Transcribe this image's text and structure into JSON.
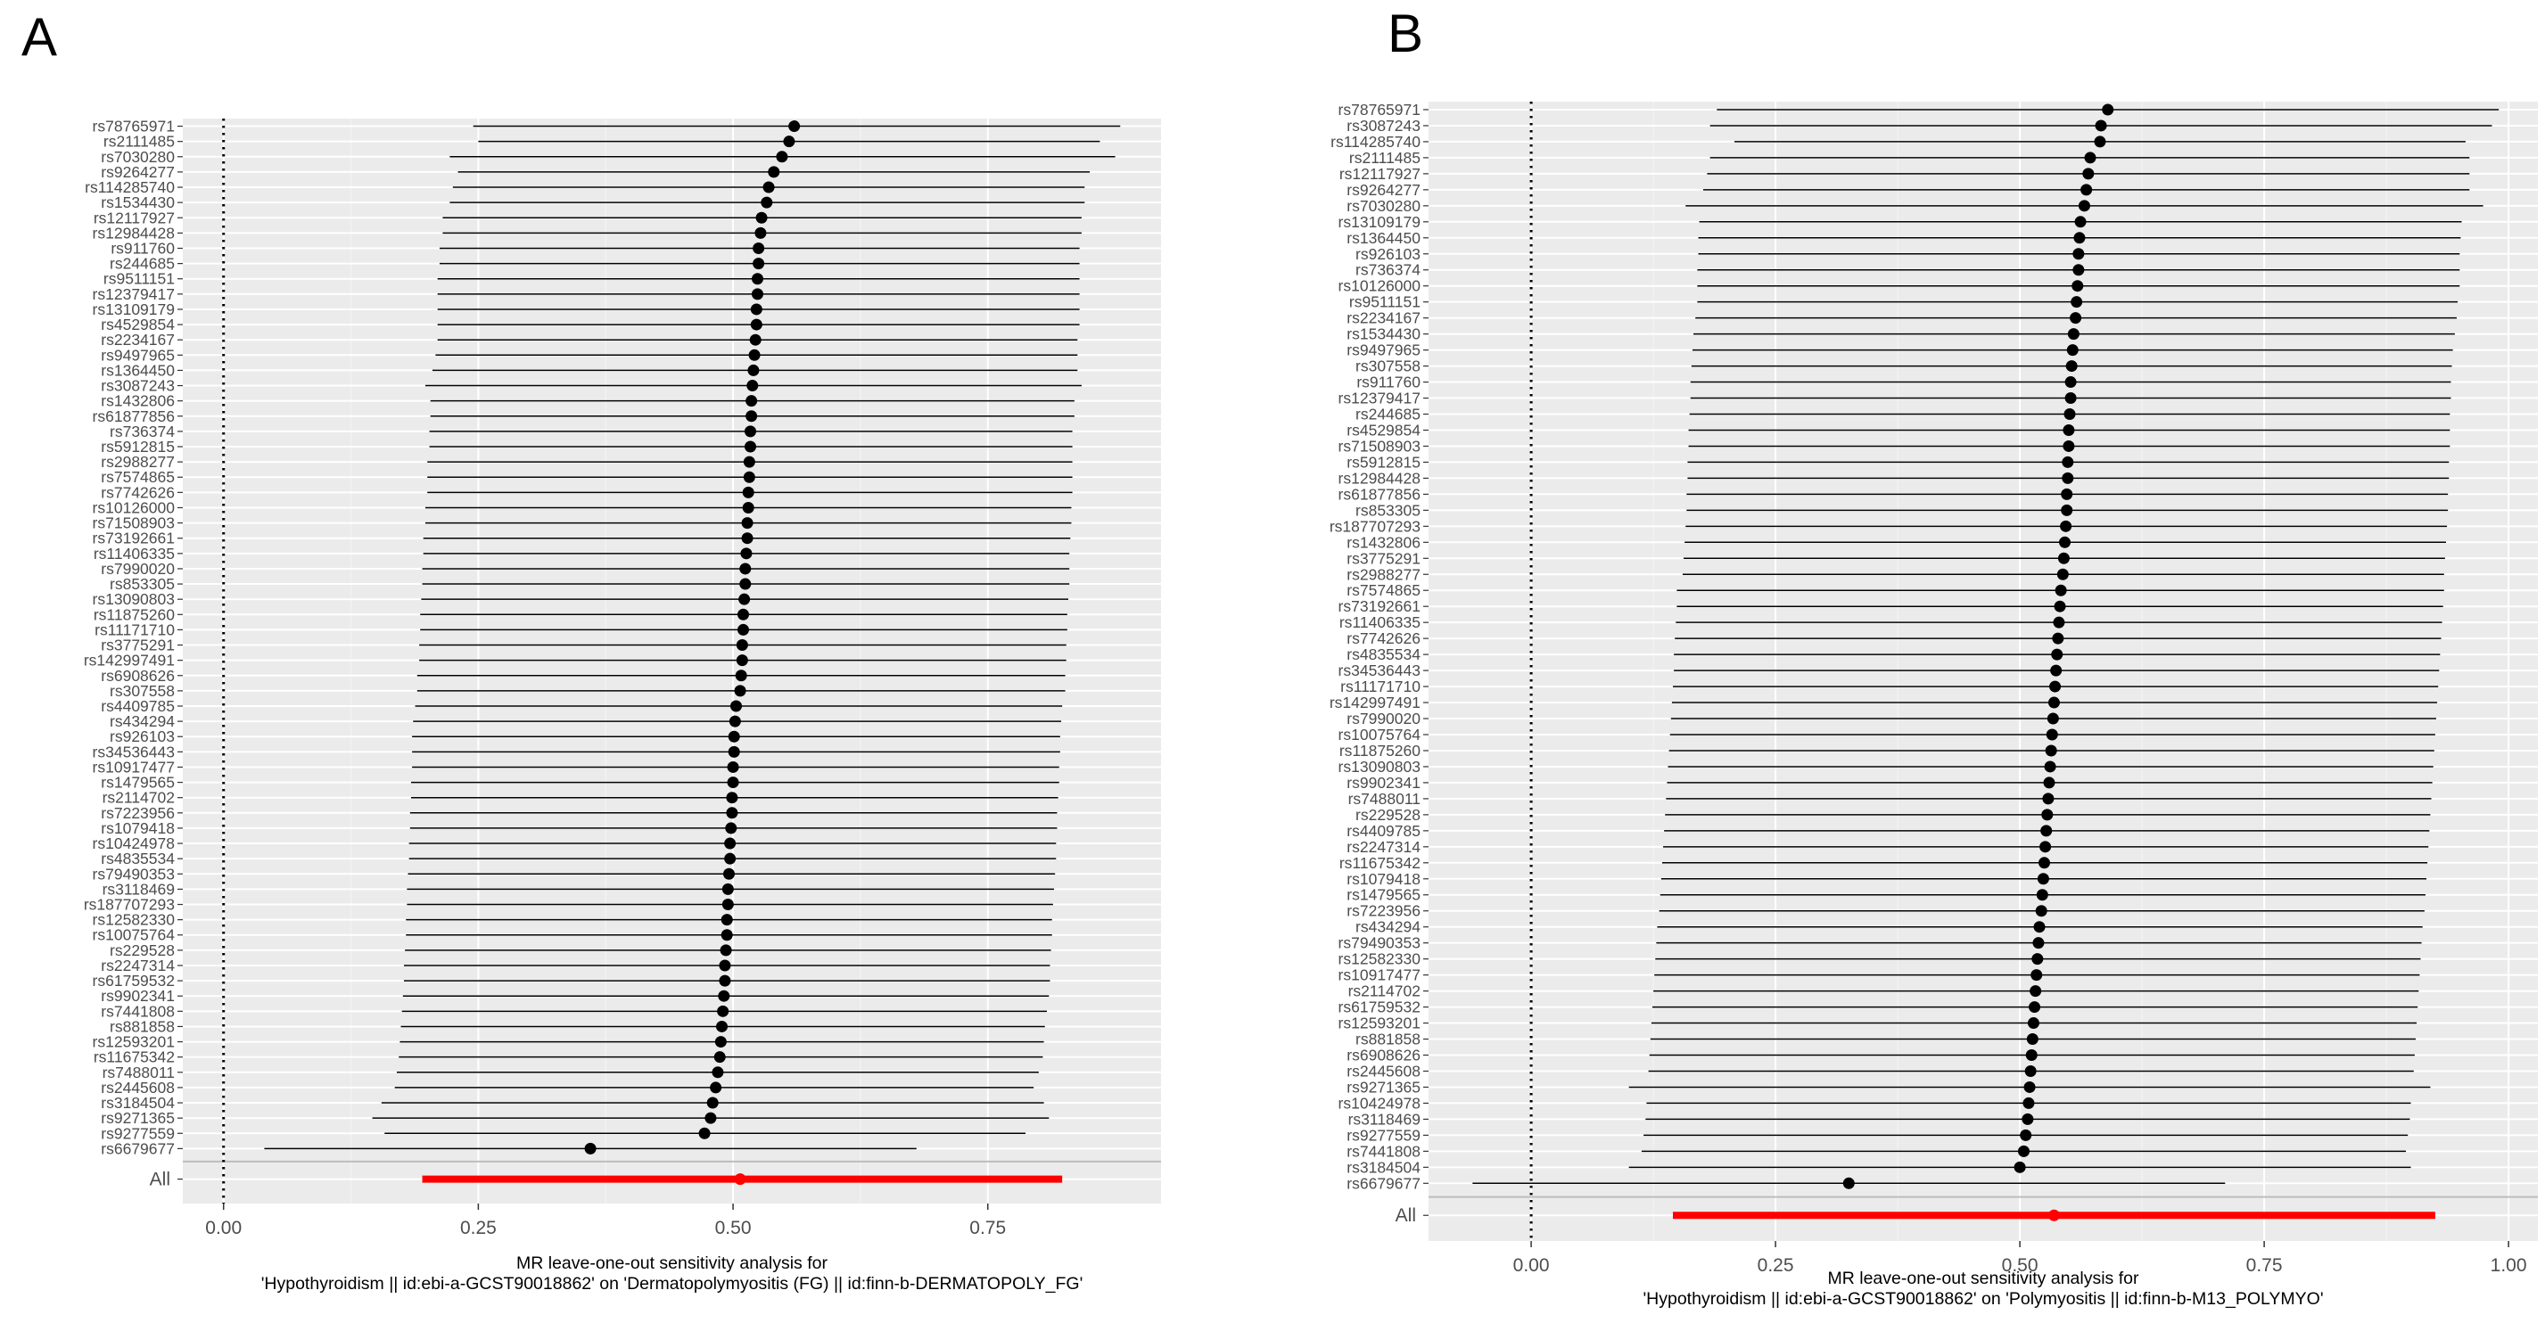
{
  "chart_data": [
    {
      "type": "forest",
      "panel_label": "A",
      "title_lines": [
        "MR leave-one-out sensitivity analysis for",
        "'Hypothyroidism || id:ebi-a-GCST90018862' on 'Dermatopolymyositis (FG) || id:finn-b-DERMATOPOLY_FG'"
      ],
      "xlim": [
        -0.04,
        0.92
      ],
      "x_ticks": [
        0,
        0.25,
        0.5,
        0.75
      ],
      "x_tick_labels": [
        "0.00",
        "0.25",
        "0.50",
        "0.75"
      ],
      "reference_line": 0,
      "rows": [
        {
          "snp": "rs78765971",
          "b": 0.56,
          "lo": 0.245,
          "hi": 0.88
        },
        {
          "snp": "rs2111485",
          "b": 0.555,
          "lo": 0.25,
          "hi": 0.86
        },
        {
          "snp": "rs7030280",
          "b": 0.548,
          "lo": 0.222,
          "hi": 0.875
        },
        {
          "snp": "rs9264277",
          "b": 0.54,
          "lo": 0.23,
          "hi": 0.85
        },
        {
          "snp": "rs114285740",
          "b": 0.535,
          "lo": 0.225,
          "hi": 0.845
        },
        {
          "snp": "rs1534430",
          "b": 0.533,
          "lo": 0.222,
          "hi": 0.845
        },
        {
          "snp": "rs12117927",
          "b": 0.528,
          "lo": 0.215,
          "hi": 0.842
        },
        {
          "snp": "rs12984428",
          "b": 0.527,
          "lo": 0.215,
          "hi": 0.842
        },
        {
          "snp": "rs911760",
          "b": 0.525,
          "lo": 0.212,
          "hi": 0.84
        },
        {
          "snp": "rs244685",
          "b": 0.525,
          "lo": 0.212,
          "hi": 0.84
        },
        {
          "snp": "rs9511151",
          "b": 0.524,
          "lo": 0.21,
          "hi": 0.84
        },
        {
          "snp": "rs12379417",
          "b": 0.524,
          "lo": 0.21,
          "hi": 0.84
        },
        {
          "snp": "rs13109179",
          "b": 0.523,
          "lo": 0.21,
          "hi": 0.84
        },
        {
          "snp": "rs4529854",
          "b": 0.523,
          "lo": 0.21,
          "hi": 0.84
        },
        {
          "snp": "rs2234167",
          "b": 0.522,
          "lo": 0.21,
          "hi": 0.838
        },
        {
          "snp": "rs9497965",
          "b": 0.521,
          "lo": 0.208,
          "hi": 0.838
        },
        {
          "snp": "rs1364450",
          "b": 0.52,
          "lo": 0.205,
          "hi": 0.838
        },
        {
          "snp": "rs3087243",
          "b": 0.519,
          "lo": 0.198,
          "hi": 0.842
        },
        {
          "snp": "rs1432806",
          "b": 0.518,
          "lo": 0.203,
          "hi": 0.835
        },
        {
          "snp": "rs61877856",
          "b": 0.518,
          "lo": 0.203,
          "hi": 0.835
        },
        {
          "snp": "rs736374",
          "b": 0.517,
          "lo": 0.202,
          "hi": 0.833
        },
        {
          "snp": "rs5912815",
          "b": 0.517,
          "lo": 0.202,
          "hi": 0.833
        },
        {
          "snp": "rs2988277",
          "b": 0.516,
          "lo": 0.2,
          "hi": 0.833
        },
        {
          "snp": "rs7574865",
          "b": 0.516,
          "lo": 0.2,
          "hi": 0.833
        },
        {
          "snp": "rs7742626",
          "b": 0.515,
          "lo": 0.2,
          "hi": 0.833
        },
        {
          "snp": "rs10126000",
          "b": 0.515,
          "lo": 0.198,
          "hi": 0.832
        },
        {
          "snp": "rs71508903",
          "b": 0.514,
          "lo": 0.198,
          "hi": 0.832
        },
        {
          "snp": "rs73192661",
          "b": 0.514,
          "lo": 0.196,
          "hi": 0.831
        },
        {
          "snp": "rs11406335",
          "b": 0.513,
          "lo": 0.196,
          "hi": 0.83
        },
        {
          "snp": "rs7990020",
          "b": 0.512,
          "lo": 0.195,
          "hi": 0.83
        },
        {
          "snp": "rs853305",
          "b": 0.512,
          "lo": 0.195,
          "hi": 0.83
        },
        {
          "snp": "rs13090803",
          "b": 0.511,
          "lo": 0.194,
          "hi": 0.829
        },
        {
          "snp": "rs11875260",
          "b": 0.51,
          "lo": 0.193,
          "hi": 0.828
        },
        {
          "snp": "rs11171710",
          "b": 0.51,
          "lo": 0.193,
          "hi": 0.828
        },
        {
          "snp": "rs3775291",
          "b": 0.509,
          "lo": 0.192,
          "hi": 0.827
        },
        {
          "snp": "rs142997491",
          "b": 0.509,
          "lo": 0.192,
          "hi": 0.827
        },
        {
          "snp": "rs6908626",
          "b": 0.508,
          "lo": 0.19,
          "hi": 0.826
        },
        {
          "snp": "rs307558",
          "b": 0.507,
          "lo": 0.19,
          "hi": 0.826
        },
        {
          "snp": "rs4409785",
          "b": 0.503,
          "lo": 0.188,
          "hi": 0.823
        },
        {
          "snp": "rs434294",
          "b": 0.502,
          "lo": 0.186,
          "hi": 0.822
        },
        {
          "snp": "rs926103",
          "b": 0.501,
          "lo": 0.185,
          "hi": 0.821
        },
        {
          "snp": "rs34536443",
          "b": 0.501,
          "lo": 0.185,
          "hi": 0.821
        },
        {
          "snp": "rs10917477",
          "b": 0.5,
          "lo": 0.185,
          "hi": 0.82
        },
        {
          "snp": "rs1479565",
          "b": 0.5,
          "lo": 0.184,
          "hi": 0.82
        },
        {
          "snp": "rs2114702",
          "b": 0.499,
          "lo": 0.184,
          "hi": 0.819
        },
        {
          "snp": "rs7223956",
          "b": 0.499,
          "lo": 0.183,
          "hi": 0.818
        },
        {
          "snp": "rs1079418",
          "b": 0.498,
          "lo": 0.183,
          "hi": 0.818
        },
        {
          "snp": "rs10424978",
          "b": 0.497,
          "lo": 0.182,
          "hi": 0.817
        },
        {
          "snp": "rs4835534",
          "b": 0.497,
          "lo": 0.182,
          "hi": 0.817
        },
        {
          "snp": "rs79490353",
          "b": 0.496,
          "lo": 0.181,
          "hi": 0.816
        },
        {
          "snp": "rs3118469",
          "b": 0.495,
          "lo": 0.18,
          "hi": 0.815
        },
        {
          "snp": "rs187707293",
          "b": 0.495,
          "lo": 0.18,
          "hi": 0.814
        },
        {
          "snp": "rs12582330",
          "b": 0.494,
          "lo": 0.179,
          "hi": 0.813
        },
        {
          "snp": "rs10075764",
          "b": 0.494,
          "lo": 0.179,
          "hi": 0.813
        },
        {
          "snp": "rs229528",
          "b": 0.493,
          "lo": 0.178,
          "hi": 0.812
        },
        {
          "snp": "rs2247314",
          "b": 0.492,
          "lo": 0.177,
          "hi": 0.811
        },
        {
          "snp": "rs61759532",
          "b": 0.492,
          "lo": 0.177,
          "hi": 0.811
        },
        {
          "snp": "rs9902341",
          "b": 0.491,
          "lo": 0.176,
          "hi": 0.81
        },
        {
          "snp": "rs7441808",
          "b": 0.49,
          "lo": 0.175,
          "hi": 0.808
        },
        {
          "snp": "rs881858",
          "b": 0.489,
          "lo": 0.174,
          "hi": 0.806
        },
        {
          "snp": "rs12593201",
          "b": 0.488,
          "lo": 0.173,
          "hi": 0.805
        },
        {
          "snp": "rs11675342",
          "b": 0.487,
          "lo": 0.172,
          "hi": 0.804
        },
        {
          "snp": "rs7488011",
          "b": 0.485,
          "lo": 0.17,
          "hi": 0.8
        },
        {
          "snp": "rs2445608",
          "b": 0.483,
          "lo": 0.168,
          "hi": 0.795
        },
        {
          "snp": "rs3184504",
          "b": 0.48,
          "lo": 0.155,
          "hi": 0.805
        },
        {
          "snp": "rs9271365",
          "b": 0.478,
          "lo": 0.146,
          "hi": 0.81
        },
        {
          "snp": "rs9277559",
          "b": 0.472,
          "lo": 0.158,
          "hi": 0.787
        },
        {
          "snp": "rs6679677",
          "b": 0.36,
          "lo": 0.04,
          "hi": 0.68
        }
      ],
      "overall": {
        "label": "All",
        "b": 0.507,
        "lo": 0.195,
        "hi": 0.823,
        "color": "#ff0000"
      }
    },
    {
      "type": "forest",
      "panel_label": "B",
      "title_lines": [
        "MR leave-one-out sensitivity analysis for",
        "'Hypothyroidism || id:ebi-a-GCST90018862' on 'Polymyositis || id:finn-b-M13_POLYMYO'"
      ],
      "xlim": [
        -0.105,
        1.03
      ],
      "x_ticks": [
        0,
        0.25,
        0.5,
        0.75,
        1.0
      ],
      "x_tick_labels": [
        "0.00",
        "0.25",
        "0.50",
        "0.75",
        "1.00"
      ],
      "reference_line": 0,
      "rows": [
        {
          "snp": "rs78765971",
          "b": 0.59,
          "lo": 0.19,
          "hi": 0.99
        },
        {
          "snp": "rs3087243",
          "b": 0.583,
          "lo": 0.183,
          "hi": 0.983
        },
        {
          "snp": "rs114285740",
          "b": 0.582,
          "lo": 0.208,
          "hi": 0.956
        },
        {
          "snp": "rs2111485",
          "b": 0.572,
          "lo": 0.183,
          "hi": 0.96
        },
        {
          "snp": "rs12117927",
          "b": 0.57,
          "lo": 0.18,
          "hi": 0.96
        },
        {
          "snp": "rs9264277",
          "b": 0.568,
          "lo": 0.176,
          "hi": 0.96
        },
        {
          "snp": "rs7030280",
          "b": 0.566,
          "lo": 0.158,
          "hi": 0.974
        },
        {
          "snp": "rs13109179",
          "b": 0.562,
          "lo": 0.172,
          "hi": 0.952
        },
        {
          "snp": "rs1364450",
          "b": 0.561,
          "lo": 0.171,
          "hi": 0.951
        },
        {
          "snp": "rs926103",
          "b": 0.56,
          "lo": 0.171,
          "hi": 0.95
        },
        {
          "snp": "rs736374",
          "b": 0.56,
          "lo": 0.17,
          "hi": 0.95
        },
        {
          "snp": "rs10126000",
          "b": 0.559,
          "lo": 0.17,
          "hi": 0.95
        },
        {
          "snp": "rs9511151",
          "b": 0.558,
          "lo": 0.17,
          "hi": 0.948
        },
        {
          "snp": "rs2234167",
          "b": 0.557,
          "lo": 0.168,
          "hi": 0.947
        },
        {
          "snp": "rs1534430",
          "b": 0.555,
          "lo": 0.166,
          "hi": 0.945
        },
        {
          "snp": "rs9497965",
          "b": 0.554,
          "lo": 0.165,
          "hi": 0.943
        },
        {
          "snp": "rs307558",
          "b": 0.553,
          "lo": 0.164,
          "hi": 0.942
        },
        {
          "snp": "rs911760",
          "b": 0.552,
          "lo": 0.163,
          "hi": 0.941
        },
        {
          "snp": "rs12379417",
          "b": 0.552,
          "lo": 0.163,
          "hi": 0.941
        },
        {
          "snp": "rs244685",
          "b": 0.551,
          "lo": 0.162,
          "hi": 0.94
        },
        {
          "snp": "rs4529854",
          "b": 0.55,
          "lo": 0.161,
          "hi": 0.94
        },
        {
          "snp": "rs71508903",
          "b": 0.55,
          "lo": 0.161,
          "hi": 0.94
        },
        {
          "snp": "rs5912815",
          "b": 0.549,
          "lo": 0.16,
          "hi": 0.939
        },
        {
          "snp": "rs12984428",
          "b": 0.549,
          "lo": 0.16,
          "hi": 0.939
        },
        {
          "snp": "rs61877856",
          "b": 0.548,
          "lo": 0.159,
          "hi": 0.938
        },
        {
          "snp": "rs853305",
          "b": 0.548,
          "lo": 0.159,
          "hi": 0.938
        },
        {
          "snp": "rs187707293",
          "b": 0.547,
          "lo": 0.158,
          "hi": 0.937
        },
        {
          "snp": "rs1432806",
          "b": 0.546,
          "lo": 0.157,
          "hi": 0.936
        },
        {
          "snp": "rs3775291",
          "b": 0.545,
          "lo": 0.156,
          "hi": 0.935
        },
        {
          "snp": "rs2988277",
          "b": 0.544,
          "lo": 0.155,
          "hi": 0.934
        },
        {
          "snp": "rs7574865",
          "b": 0.542,
          "lo": 0.149,
          "hi": 0.934
        },
        {
          "snp": "rs73192661",
          "b": 0.541,
          "lo": 0.149,
          "hi": 0.933
        },
        {
          "snp": "rs11406335",
          "b": 0.54,
          "lo": 0.148,
          "hi": 0.932
        },
        {
          "snp": "rs7742626",
          "b": 0.539,
          "lo": 0.147,
          "hi": 0.931
        },
        {
          "snp": "rs4835534",
          "b": 0.538,
          "lo": 0.146,
          "hi": 0.93
        },
        {
          "snp": "rs34536443",
          "b": 0.537,
          "lo": 0.146,
          "hi": 0.929
        },
        {
          "snp": "rs11171710",
          "b": 0.536,
          "lo": 0.145,
          "hi": 0.928
        },
        {
          "snp": "rs142997491",
          "b": 0.535,
          "lo": 0.144,
          "hi": 0.927
        },
        {
          "snp": "rs7990020",
          "b": 0.534,
          "lo": 0.143,
          "hi": 0.926
        },
        {
          "snp": "rs10075764",
          "b": 0.533,
          "lo": 0.142,
          "hi": 0.925
        },
        {
          "snp": "rs11875260",
          "b": 0.532,
          "lo": 0.141,
          "hi": 0.924
        },
        {
          "snp": "rs13090803",
          "b": 0.531,
          "lo": 0.14,
          "hi": 0.923
        },
        {
          "snp": "rs9902341",
          "b": 0.53,
          "lo": 0.139,
          "hi": 0.922
        },
        {
          "snp": "rs7488011",
          "b": 0.529,
          "lo": 0.138,
          "hi": 0.921
        },
        {
          "snp": "rs229528",
          "b": 0.528,
          "lo": 0.137,
          "hi": 0.92
        },
        {
          "snp": "rs4409785",
          "b": 0.527,
          "lo": 0.136,
          "hi": 0.919
        },
        {
          "snp": "rs2247314",
          "b": 0.526,
          "lo": 0.135,
          "hi": 0.918
        },
        {
          "snp": "rs11675342",
          "b": 0.525,
          "lo": 0.134,
          "hi": 0.917
        },
        {
          "snp": "rs1079418",
          "b": 0.524,
          "lo": 0.133,
          "hi": 0.916
        },
        {
          "snp": "rs1479565",
          "b": 0.523,
          "lo": 0.132,
          "hi": 0.915
        },
        {
          "snp": "rs7223956",
          "b": 0.522,
          "lo": 0.131,
          "hi": 0.914
        },
        {
          "snp": "rs434294",
          "b": 0.52,
          "lo": 0.129,
          "hi": 0.912
        },
        {
          "snp": "rs79490353",
          "b": 0.519,
          "lo": 0.128,
          "hi": 0.911
        },
        {
          "snp": "rs12582330",
          "b": 0.518,
          "lo": 0.127,
          "hi": 0.91
        },
        {
          "snp": "rs10917477",
          "b": 0.517,
          "lo": 0.126,
          "hi": 0.909
        },
        {
          "snp": "rs2114702",
          "b": 0.516,
          "lo": 0.125,
          "hi": 0.908
        },
        {
          "snp": "rs61759532",
          "b": 0.515,
          "lo": 0.124,
          "hi": 0.907
        },
        {
          "snp": "rs12593201",
          "b": 0.514,
          "lo": 0.123,
          "hi": 0.906
        },
        {
          "snp": "rs881858",
          "b": 0.513,
          "lo": 0.122,
          "hi": 0.905
        },
        {
          "snp": "rs6908626",
          "b": 0.512,
          "lo": 0.121,
          "hi": 0.904
        },
        {
          "snp": "rs2445608",
          "b": 0.511,
          "lo": 0.12,
          "hi": 0.903
        },
        {
          "snp": "rs9271365",
          "b": 0.51,
          "lo": 0.1,
          "hi": 0.92
        },
        {
          "snp": "rs10424978",
          "b": 0.509,
          "lo": 0.118,
          "hi": 0.9
        },
        {
          "snp": "rs3118469",
          "b": 0.508,
          "lo": 0.117,
          "hi": 0.899
        },
        {
          "snp": "rs9277559",
          "b": 0.506,
          "lo": 0.115,
          "hi": 0.897
        },
        {
          "snp": "rs7441808",
          "b": 0.504,
          "lo": 0.113,
          "hi": 0.895
        },
        {
          "snp": "rs3184504",
          "b": 0.5,
          "lo": 0.1,
          "hi": 0.9
        },
        {
          "snp": "rs6679677",
          "b": 0.325,
          "lo": -0.06,
          "hi": 0.71
        }
      ],
      "overall": {
        "label": "All",
        "b": 0.535,
        "lo": 0.145,
        "hi": 0.925,
        "color": "#ff0000"
      }
    }
  ]
}
